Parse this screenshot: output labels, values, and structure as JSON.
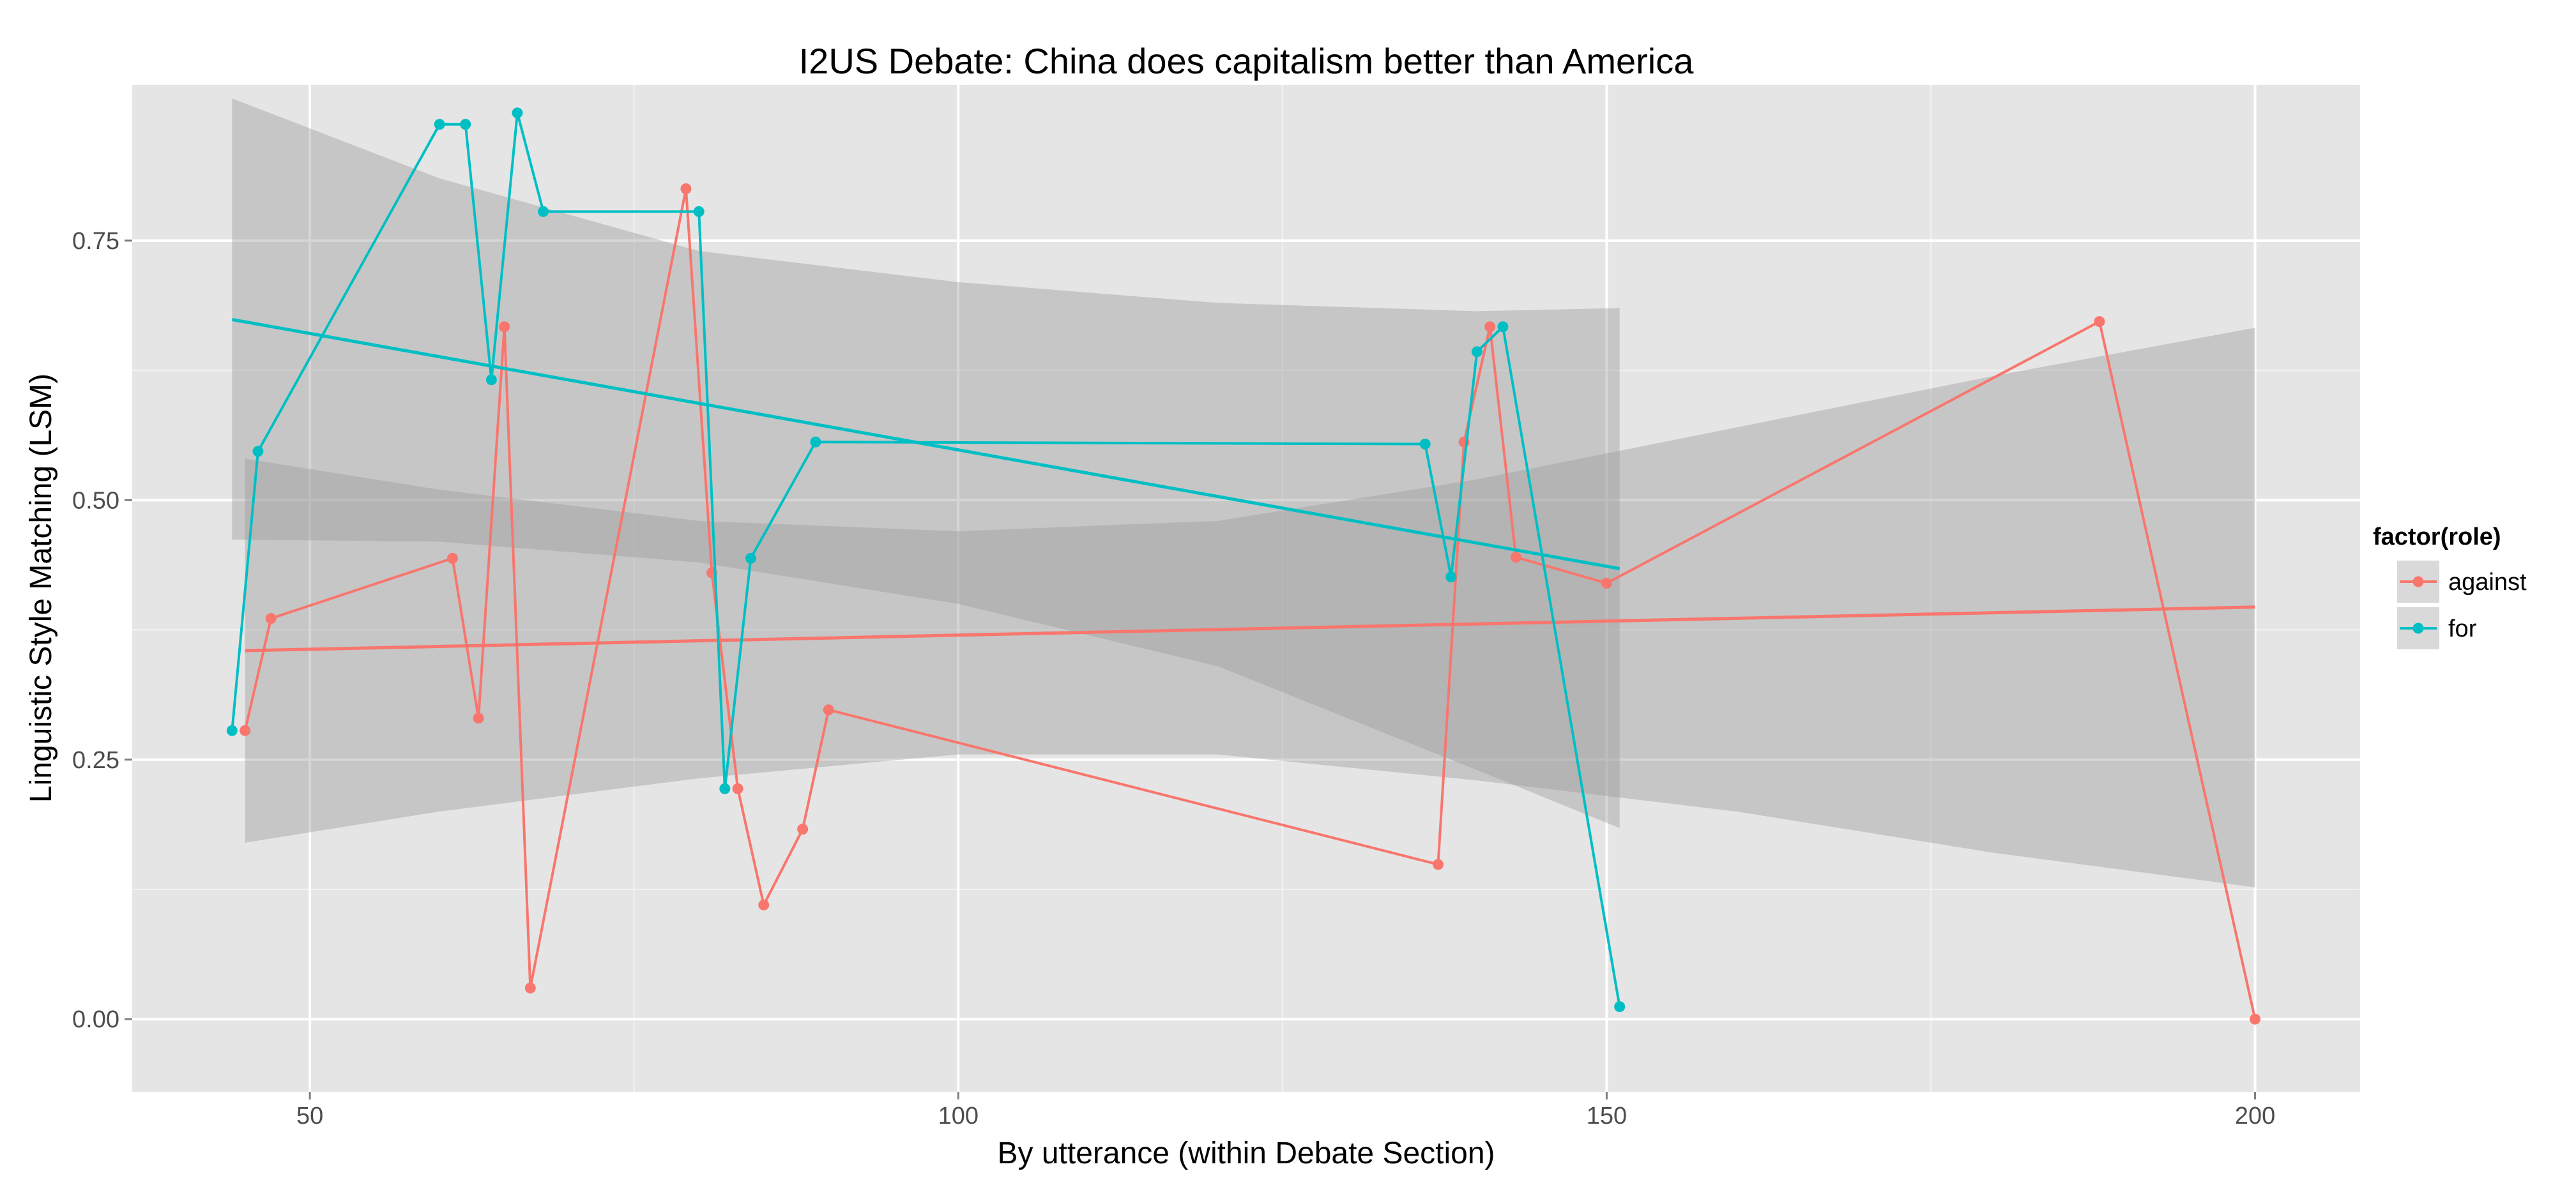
{
  "chart_data": {
    "type": "line",
    "title": "I2US Debate: China does capitalism better than America",
    "xlabel": "By utterance (within Debate Section)",
    "ylabel": "Linguistic Style Matching (LSM)",
    "xlim": [
      36.3,
      208.1
    ],
    "ylim": [
      -0.07,
      0.9
    ],
    "x_ticks": [
      50,
      100,
      150,
      200
    ],
    "x_tick_labels": [
      "50",
      "100",
      "150",
      "200"
    ],
    "y_ticks": [
      0,
      0.25,
      0.5,
      0.75
    ],
    "y_tick_labels": [
      "0.00",
      "0.25",
      "0.50",
      "0.75"
    ],
    "grid": true,
    "legend": {
      "title": "factor(role)",
      "position": "right",
      "entries": [
        "against",
        "for"
      ]
    },
    "series": [
      {
        "name": "against",
        "color": "#F8766D",
        "points": [
          {
            "x": 45,
            "y": 0.278
          },
          {
            "x": 47,
            "y": 0.386
          },
          {
            "x": 61,
            "y": 0.444
          },
          {
            "x": 63,
            "y": 0.29
          },
          {
            "x": 65,
            "y": 0.667
          },
          {
            "x": 67,
            "y": 0.03
          },
          {
            "x": 79,
            "y": 0.8
          },
          {
            "x": 81,
            "y": 0.43
          },
          {
            "x": 83,
            "y": 0.222
          },
          {
            "x": 85,
            "y": 0.11
          },
          {
            "x": 88,
            "y": 0.183
          },
          {
            "x": 90,
            "y": 0.298
          },
          {
            "x": 137,
            "y": 0.149
          },
          {
            "x": 139,
            "y": 0.556
          },
          {
            "x": 141,
            "y": 0.667
          },
          {
            "x": 143,
            "y": 0.445
          },
          {
            "x": 150,
            "y": 0.42
          },
          {
            "x": 188,
            "y": 0.672
          },
          {
            "x": 200,
            "y": 0.0
          }
        ],
        "trend": {
          "x": [
            45,
            200
          ],
          "y": [
            0.355,
            0.397
          ]
        },
        "band": {
          "x": [
            45,
            60,
            80,
            100,
            120,
            140,
            160,
            180,
            200
          ],
          "lower": [
            0.17,
            0.2,
            0.232,
            0.255,
            0.255,
            0.23,
            0.2,
            0.16,
            0.127
          ],
          "upper": [
            0.54,
            0.51,
            0.48,
            0.47,
            0.48,
            0.52,
            0.57,
            0.62,
            0.666
          ]
        }
      },
      {
        "name": "for",
        "color": "#00BFC4",
        "points": [
          {
            "x": 44,
            "y": 0.278
          },
          {
            "x": 46,
            "y": 0.547
          },
          {
            "x": 60,
            "y": 0.862
          },
          {
            "x": 62,
            "y": 0.862
          },
          {
            "x": 64,
            "y": 0.616
          },
          {
            "x": 66,
            "y": 0.873
          },
          {
            "x": 68,
            "y": 0.778
          },
          {
            "x": 80,
            "y": 0.778
          },
          {
            "x": 82,
            "y": 0.222
          },
          {
            "x": 84,
            "y": 0.444
          },
          {
            "x": 89,
            "y": 0.556
          },
          {
            "x": 136,
            "y": 0.554
          },
          {
            "x": 138,
            "y": 0.426
          },
          {
            "x": 140,
            "y": 0.643
          },
          {
            "x": 142,
            "y": 0.667
          },
          {
            "x": 151,
            "y": 0.012
          }
        ],
        "trend": {
          "x": [
            44,
            151
          ],
          "y": [
            0.674,
            0.434
          ]
        },
        "band": {
          "x": [
            44,
            60,
            80,
            100,
            120,
            140,
            151
          ],
          "lower": [
            0.462,
            0.46,
            0.44,
            0.4,
            0.34,
            0.24,
            0.184
          ],
          "upper": [
            0.887,
            0.81,
            0.74,
            0.71,
            0.69,
            0.682,
            0.685
          ]
        }
      }
    ]
  }
}
